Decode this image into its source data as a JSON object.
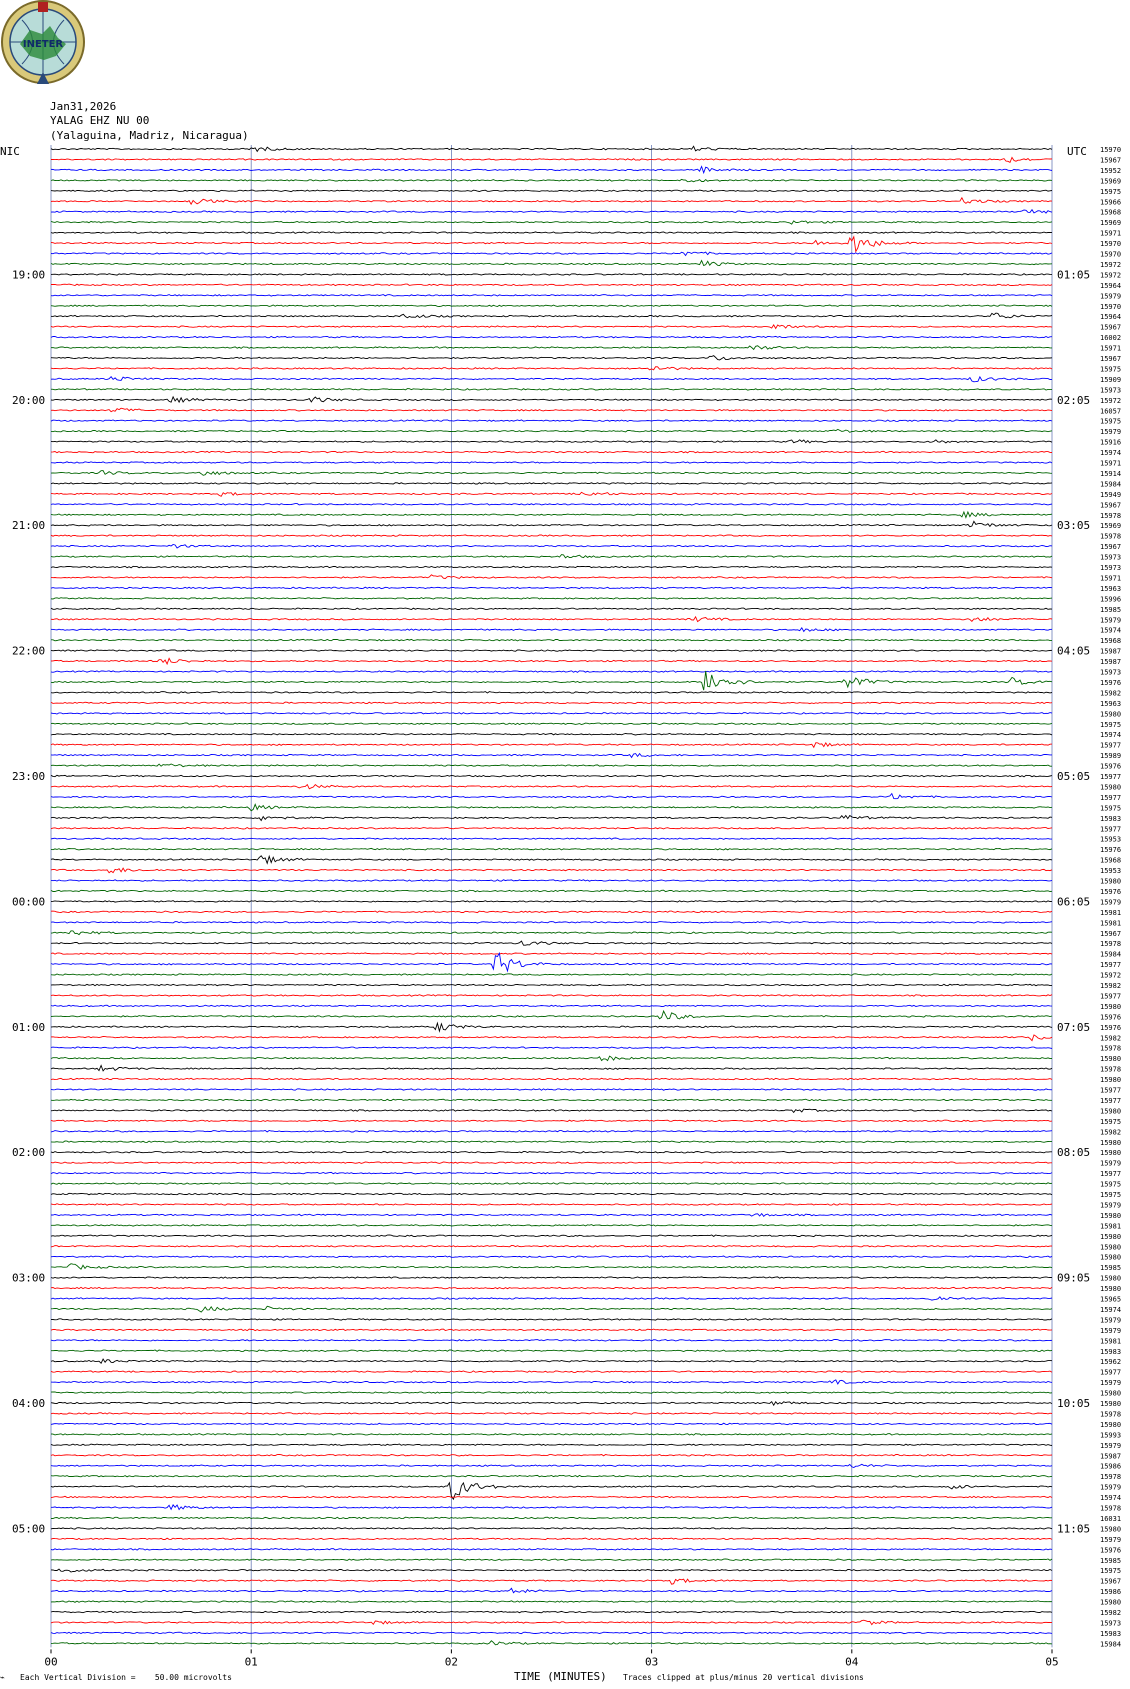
{
  "header": {
    "logo_text": "INETER",
    "date": "Jan31,2026",
    "station": "YALAG EHZ NU 00",
    "location": "(Yalaguina, Madriz, Nicaragua)",
    "left_zone": "NIC",
    "right_zone": "UTC"
  },
  "footer": {
    "scale_note": "Each Vertical Division =    50.00 microvolts",
    "clip_note": "Traces clipped at plus/minus 20 vertical divisions"
  },
  "colors": {
    "cycle": [
      "#000000",
      "#ff0000",
      "#0000ff",
      "#006400"
    ],
    "grid": "#6b7db8"
  },
  "chart_data": {
    "type": "line",
    "title": "",
    "xlabel": "TIME (MINUTES)",
    "xlim": [
      0,
      5
    ],
    "x_ticks": [
      "00",
      "01",
      "02",
      "03",
      "04",
      "05"
    ],
    "rows_per_hour": 12,
    "row_count": 144,
    "left_time_labels": [
      {
        "row": 12,
        "label": "19:00"
      },
      {
        "row": 24,
        "label": "20:00"
      },
      {
        "row": 36,
        "label": "21:00"
      },
      {
        "row": 48,
        "label": "22:00"
      },
      {
        "row": 60,
        "label": "23:00"
      },
      {
        "row": 72,
        "label": "00:00"
      },
      {
        "row": 84,
        "label": "01:00"
      },
      {
        "row": 96,
        "label": "02:00"
      },
      {
        "row": 108,
        "label": "03:00"
      },
      {
        "row": 120,
        "label": "04:00"
      },
      {
        "row": 132,
        "label": "05:00"
      }
    ],
    "right_time_labels": [
      {
        "row": 12,
        "label": "01:05"
      },
      {
        "row": 24,
        "label": "02:05"
      },
      {
        "row": 36,
        "label": "03:05"
      },
      {
        "row": 48,
        "label": "04:05"
      },
      {
        "row": 60,
        "label": "05:05"
      },
      {
        "row": 72,
        "label": "06:05"
      },
      {
        "row": 84,
        "label": "07:05"
      },
      {
        "row": 96,
        "label": "08:05"
      },
      {
        "row": 108,
        "label": "09:05"
      },
      {
        "row": 120,
        "label": "10:05"
      },
      {
        "row": 132,
        "label": "11:05"
      }
    ],
    "row_counts": [
      "15970",
      "15967",
      "15952",
      "15969",
      "15975",
      "15966",
      "15968",
      "15969",
      "15971",
      "15970",
      "15970",
      "15972",
      "15972",
      "15964",
      "15979",
      "15970",
      "15964",
      "15967",
      "16002",
      "15971",
      "15967",
      "15975",
      "15909",
      "15973",
      "15972",
      "16057",
      "15975",
      "15979",
      "15916",
      "15974",
      "15971",
      "15914",
      "15984",
      "15949",
      "15967",
      "15978",
      "15969",
      "15978",
      "15967",
      "15973",
      "15973",
      "15971",
      "15963",
      "15996",
      "15985",
      "15979",
      "15974",
      "15968",
      "15987",
      "15987",
      "15973",
      "15976",
      "15982",
      "15963",
      "15980",
      "15975",
      "15974",
      "15977",
      "15989",
      "15976",
      "15977",
      "15980",
      "15977",
      "15975",
      "15983",
      "15977",
      "15953",
      "15976",
      "15968",
      "15953",
      "15980",
      "15976",
      "15979",
      "15981",
      "15981",
      "15967",
      "15978",
      "15984",
      "15977",
      "15972",
      "15982",
      "15977",
      "15980",
      "15976",
      "15976",
      "15982",
      "15978",
      "15980",
      "15978",
      "15980",
      "15977",
      "15977",
      "15980",
      "15975",
      "15982",
      "15980",
      "15980",
      "15979",
      "15977",
      "15975",
      "15975",
      "15979",
      "15980",
      "15981",
      "15980",
      "15980",
      "15980",
      "15985",
      "15980",
      "15980",
      "15965",
      "15974",
      "15979",
      "15979",
      "15981",
      "15983",
      "15962",
      "15977",
      "15979",
      "15980",
      "15980",
      "15978",
      "15980",
      "15993",
      "15979",
      "15987",
      "15986",
      "15978",
      "15979",
      "15974",
      "15978",
      "16031",
      "15980",
      "15979",
      "15976",
      "15985",
      "15975",
      "15967",
      "15986",
      "15980",
      "15982",
      "15973",
      "15983",
      "15984"
    ],
    "events": [
      {
        "row": 0,
        "t": 1.0,
        "amp": 3
      },
      {
        "row": 0,
        "t": 3.2,
        "amp": 2.5
      },
      {
        "row": 1,
        "t": 4.75,
        "amp": 4
      },
      {
        "row": 2,
        "t": 3.25,
        "amp": 3
      },
      {
        "row": 3,
        "t": 3.15,
        "amp": 2
      },
      {
        "row": 5,
        "t": 0.7,
        "amp": 3
      },
      {
        "row": 5,
        "t": 4.55,
        "amp": 3
      },
      {
        "row": 6,
        "t": 4.85,
        "amp": 3
      },
      {
        "row": 7,
        "t": 3.7,
        "amp": 2
      },
      {
        "row": 9,
        "t": 4.0,
        "amp": 12
      },
      {
        "row": 9,
        "t": 3.8,
        "amp": 3
      },
      {
        "row": 10,
        "t": 3.15,
        "amp": 3
      },
      {
        "row": 11,
        "t": 3.25,
        "amp": 3
      },
      {
        "row": 16,
        "t": 1.75,
        "amp": 3
      },
      {
        "row": 16,
        "t": 4.7,
        "amp": 4
      },
      {
        "row": 17,
        "t": 3.6,
        "amp": 3
      },
      {
        "row": 19,
        "t": 3.5,
        "amp": 3
      },
      {
        "row": 20,
        "t": 3.3,
        "amp": 3
      },
      {
        "row": 21,
        "t": 3.0,
        "amp": 3
      },
      {
        "row": 22,
        "t": 0.3,
        "amp": 3
      },
      {
        "row": 22,
        "t": 4.6,
        "amp": 3
      },
      {
        "row": 24,
        "t": 0.6,
        "amp": 3
      },
      {
        "row": 24,
        "t": 1.3,
        "amp": 3
      },
      {
        "row": 25,
        "t": 0.3,
        "amp": 3
      },
      {
        "row": 27,
        "t": 3.9,
        "amp": 2
      },
      {
        "row": 28,
        "t": 3.7,
        "amp": 2
      },
      {
        "row": 28,
        "t": 4.4,
        "amp": 2
      },
      {
        "row": 31,
        "t": 0.75,
        "amp": 3
      },
      {
        "row": 31,
        "t": 0.25,
        "amp": 2
      },
      {
        "row": 33,
        "t": 2.65,
        "amp": 3
      },
      {
        "row": 33,
        "t": 0.85,
        "amp": 2
      },
      {
        "row": 35,
        "t": 4.55,
        "amp": 3
      },
      {
        "row": 36,
        "t": 4.6,
        "amp": 4
      },
      {
        "row": 38,
        "t": 0.6,
        "amp": 2
      },
      {
        "row": 39,
        "t": 2.55,
        "amp": 2
      },
      {
        "row": 41,
        "t": 1.9,
        "amp": 2
      },
      {
        "row": 45,
        "t": 3.2,
        "amp": 3
      },
      {
        "row": 45,
        "t": 4.6,
        "amp": 3
      },
      {
        "row": 46,
        "t": 3.75,
        "amp": 2
      },
      {
        "row": 49,
        "t": 0.55,
        "amp": 4
      },
      {
        "row": 51,
        "t": 3.27,
        "amp": 16
      },
      {
        "row": 51,
        "t": 3.97,
        "amp": 8
      },
      {
        "row": 51,
        "t": 4.8,
        "amp": 4
      },
      {
        "row": 57,
        "t": 3.8,
        "amp": 3
      },
      {
        "row": 58,
        "t": 2.9,
        "amp": 2
      },
      {
        "row": 59,
        "t": 0.55,
        "amp": 2
      },
      {
        "row": 61,
        "t": 1.25,
        "amp": 3
      },
      {
        "row": 62,
        "t": 4.2,
        "amp": 3
      },
      {
        "row": 63,
        "t": 1.0,
        "amp": 3
      },
      {
        "row": 64,
        "t": 1.05,
        "amp": 3
      },
      {
        "row": 64,
        "t": 3.95,
        "amp": 3
      },
      {
        "row": 68,
        "t": 1.05,
        "amp": 5
      },
      {
        "row": 69,
        "t": 0.28,
        "amp": 4
      },
      {
        "row": 75,
        "t": 0.1,
        "amp": 3
      },
      {
        "row": 76,
        "t": 2.35,
        "amp": 3
      },
      {
        "row": 78,
        "t": 2.22,
        "amp": 14
      },
      {
        "row": 83,
        "t": 3.05,
        "amp": 6
      },
      {
        "row": 84,
        "t": 1.93,
        "amp": 5
      },
      {
        "row": 85,
        "t": 4.9,
        "amp": 3
      },
      {
        "row": 87,
        "t": 2.75,
        "amp": 3
      },
      {
        "row": 88,
        "t": 0.25,
        "amp": 3
      },
      {
        "row": 92,
        "t": 3.7,
        "amp": 2
      },
      {
        "row": 102,
        "t": 3.5,
        "amp": 2
      },
      {
        "row": 107,
        "t": 0.1,
        "amp": 3
      },
      {
        "row": 110,
        "t": 4.4,
        "amp": 3
      },
      {
        "row": 111,
        "t": 0.75,
        "amp": 3
      },
      {
        "row": 111,
        "t": 1.08,
        "amp": 2
      },
      {
        "row": 116,
        "t": 0.25,
        "amp": 2
      },
      {
        "row": 118,
        "t": 3.9,
        "amp": 2
      },
      {
        "row": 120,
        "t": 3.6,
        "amp": 2
      },
      {
        "row": 126,
        "t": 4.0,
        "amp": 2
      },
      {
        "row": 128,
        "t": 2.0,
        "amp": 14
      },
      {
        "row": 128,
        "t": 4.5,
        "amp": 2
      },
      {
        "row": 130,
        "t": 0.6,
        "amp": 3
      },
      {
        "row": 136,
        "t": 0.05,
        "amp": 3
      },
      {
        "row": 137,
        "t": 3.1,
        "amp": 3
      },
      {
        "row": 138,
        "t": 2.3,
        "amp": 3
      },
      {
        "row": 141,
        "t": 1.6,
        "amp": 2
      },
      {
        "row": 141,
        "t": 4.05,
        "amp": 3
      },
      {
        "row": 143,
        "t": 2.2,
        "amp": 2
      }
    ]
  }
}
